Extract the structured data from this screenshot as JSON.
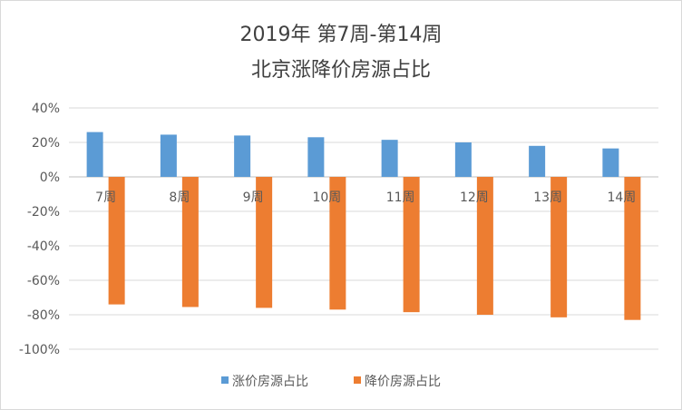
{
  "chart_data": {
    "type": "bar",
    "title": [
      "2019年 第7周-第14周",
      "北京涨降价房源占比"
    ],
    "categories": [
      "7周",
      "8周",
      "9周",
      "10周",
      "11周",
      "12周",
      "13周",
      "14周"
    ],
    "series": [
      {
        "name": "涨价房源占比",
        "color": "#5b9bd5",
        "values": [
          0.26,
          0.245,
          0.24,
          0.23,
          0.215,
          0.2,
          0.18,
          0.165
        ]
      },
      {
        "name": "降价房源占比",
        "color": "#ed7d31",
        "values": [
          -0.74,
          -0.755,
          -0.76,
          -0.77,
          -0.785,
          -0.8,
          -0.815,
          -0.83
        ]
      }
    ],
    "ylim": [
      -1.0,
      0.4
    ],
    "yticks": [
      "40%",
      "20%",
      "0%",
      "-20%",
      "-40%",
      "-60%",
      "-80%",
      "-100%"
    ],
    "grid": true,
    "legend": "bottom"
  }
}
